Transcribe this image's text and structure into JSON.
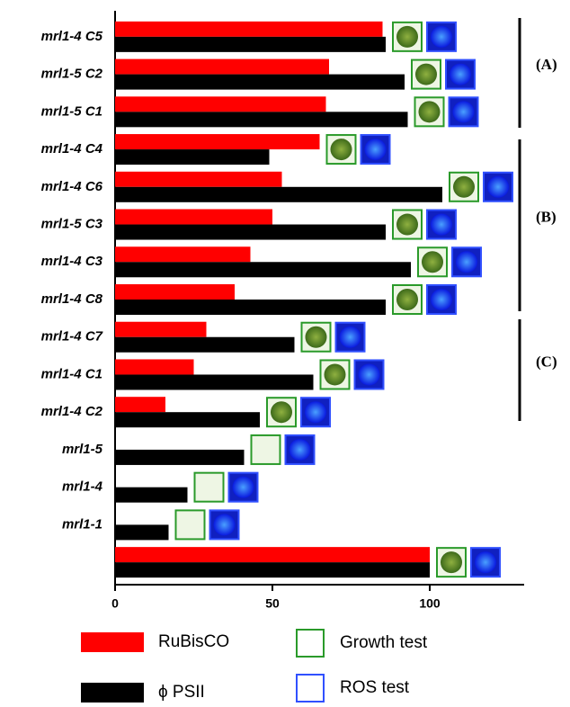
{
  "chart_data": {
    "type": "bar",
    "orientation": "horizontal",
    "categories": [
      "mrl1-4 C5",
      "mrl1-5 C2",
      "mrl1-5 C1",
      "mrl1-4 C4",
      "mrl1-4 C6",
      "mrl1-5 C3",
      "mrl1-4 C3",
      "mrl1-4 C8",
      "mrl1-4 C7",
      "mrl1-4 C1",
      "mrl1-4 C2",
      "mrl1-5",
      "mrl1-4",
      "mrl1-1",
      null
    ],
    "series": [
      {
        "name": "RuBisCO",
        "color": "#ff0000",
        "values": [
          85,
          68,
          67,
          65,
          53,
          50,
          43,
          38,
          29,
          25,
          16,
          0,
          0,
          0,
          100
        ]
      },
      {
        "name": "ϕ PSII",
        "color": "#000000",
        "values": [
          86,
          92,
          93,
          49,
          104,
          86,
          94,
          86,
          57,
          63,
          46,
          41,
          23,
          17,
          100
        ]
      }
    ],
    "xlim": [
      0,
      130
    ],
    "xticks": [
      0,
      50,
      100
    ],
    "legend_extra": [
      "Growth test",
      "ROS test"
    ],
    "groups": [
      "(A)",
      "(B)",
      "(C)"
    ]
  }
}
